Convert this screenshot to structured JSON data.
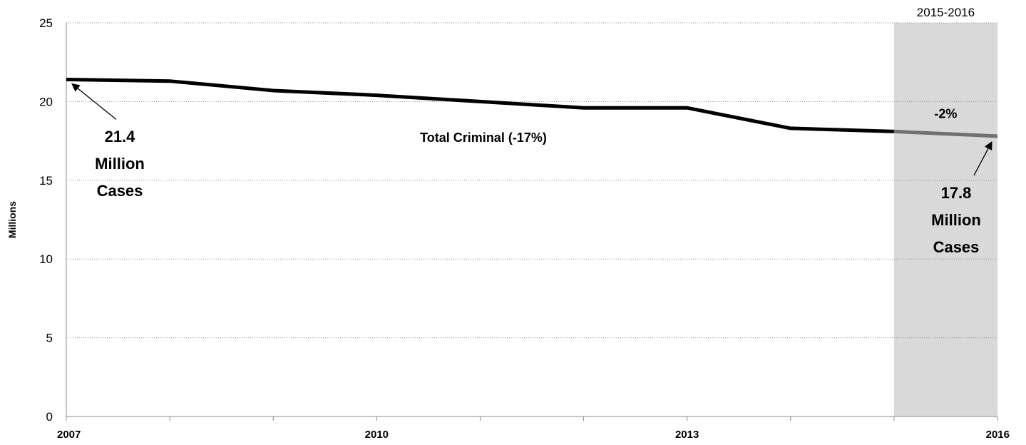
{
  "chart_data": {
    "type": "line",
    "title": "",
    "xlabel": "",
    "ylabel": "Millions",
    "ylim": [
      0,
      25
    ],
    "yticks": [
      0,
      5,
      10,
      15,
      20,
      25
    ],
    "x": [
      2007,
      2008,
      2009,
      2010,
      2011,
      2012,
      2013,
      2014,
      2015,
      2016
    ],
    "xtick_labels": [
      "2007",
      "2010",
      "2013",
      "2016"
    ],
    "xtick_label_years": [
      2007,
      2010,
      2013,
      2016
    ],
    "series": [
      {
        "name": "Total Criminal (-17%)",
        "values": [
          21.4,
          21.3,
          20.7,
          20.4,
          20.0,
          19.6,
          19.6,
          18.3,
          18.1,
          17.8
        ],
        "color": "#000000",
        "highlight_color": "#707070"
      }
    ],
    "grid": "horizontal-dotted",
    "shaded_region": {
      "x_start": 2015,
      "x_end": 2016,
      "label": "2015-2016",
      "change_label": "-2%",
      "color": "#d9d9d9"
    },
    "annotations": [
      {
        "lines": [
          "21.4",
          "Million",
          "Cases"
        ],
        "points_to_year": 2007,
        "points_to_value": 21.4
      },
      {
        "lines": [
          "17.8",
          "Million",
          "Cases"
        ],
        "points_to_year": 2016,
        "points_to_value": 17.8
      }
    ]
  }
}
